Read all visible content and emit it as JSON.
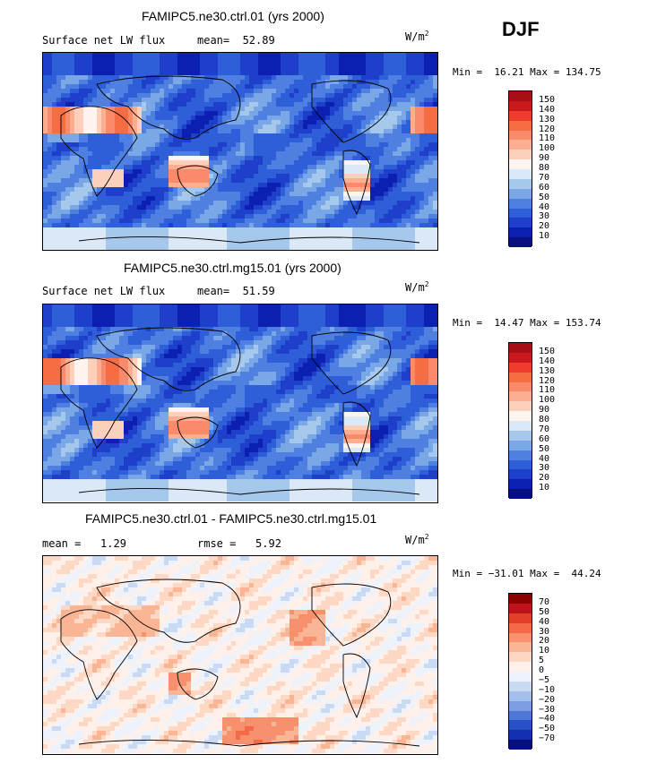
{
  "season": "DJF",
  "panels": [
    {
      "title": "FAMIPC5.ne30.ctrl.01 (yrs 2000)",
      "left_label": "Surface net LW flux",
      "stat_label": "mean=",
      "stat_value": "52.89",
      "units": "W/m",
      "units_sup": "2",
      "min_label": "Min =",
      "min_value": "16.21",
      "max_label": "Max =",
      "max_value": "134.75",
      "colorbar_labels": [
        "150",
        "140",
        "130",
        "120",
        "110",
        "100",
        "90",
        "80",
        "70",
        "60",
        "50",
        "40",
        "30",
        "20",
        "10"
      ],
      "colors": [
        "#a50f15",
        "#cb181d",
        "#ef3b2c",
        "#f46d43",
        "#fb8a6a",
        "#fcae91",
        "#fdd0bc",
        "#fff5f0",
        "#dbe9f6",
        "#a6c8ec",
        "#7aa7e6",
        "#4f7fe0",
        "#2f5fd8",
        "#1d3fc9",
        "#0b20b0",
        "#081080"
      ],
      "field": "lw"
    },
    {
      "title": "FAMIPC5.ne30.ctrl.mg15.01 (yrs 2000)",
      "left_label": "Surface net LW flux",
      "stat_label": "mean=",
      "stat_value": "51.59",
      "units": "W/m",
      "units_sup": "2",
      "min_label": "Min =",
      "min_value": "14.47",
      "max_label": "Max =",
      "max_value": "153.74",
      "colorbar_labels": [
        "150",
        "140",
        "130",
        "120",
        "110",
        "100",
        "90",
        "80",
        "70",
        "60",
        "50",
        "40",
        "30",
        "20",
        "10"
      ],
      "colors": [
        "#a50f15",
        "#cb181d",
        "#ef3b2c",
        "#f46d43",
        "#fb8a6a",
        "#fcae91",
        "#fdd0bc",
        "#fff5f0",
        "#dbe9f6",
        "#a6c8ec",
        "#7aa7e6",
        "#4f7fe0",
        "#2f5fd8",
        "#1d3fc9",
        "#0b20b0",
        "#081080"
      ],
      "field": "lw"
    },
    {
      "title": "FAMIPC5.ne30.ctrl.01 - FAMIPC5.ne30.ctrl.mg15.01",
      "left_label": "mean =",
      "left_value": "1.29",
      "stat_label": "rmse =",
      "stat_value": "5.92",
      "units": "W/m",
      "units_sup": "2",
      "min_label": "Min =",
      "min_value": "−31.01",
      "max_label": "Max =",
      "max_value": "44.24",
      "colorbar_labels": [
        "70",
        "50",
        "40",
        "30",
        "20",
        "10",
        "5",
        "0",
        "−5",
        "−10",
        "−20",
        "−30",
        "−40",
        "−50",
        "−70"
      ],
      "colors": [
        "#8b0000",
        "#c0121a",
        "#e0402a",
        "#f26a48",
        "#f7906c",
        "#fab594",
        "#fdd8c4",
        "#fff0ea",
        "#eef2fb",
        "#cbdaf3",
        "#a5bfec",
        "#7b9ee3",
        "#4f77d8",
        "#2a50c8",
        "#1330b0",
        "#06107c"
      ],
      "field": "diff"
    }
  ],
  "chart_data": [
    {
      "type": "heatmap",
      "title": "FAMIPC5.ne30.ctrl.01 (yrs 2000)",
      "variable": "Surface net LW flux",
      "units": "W/m2",
      "mean": 52.89,
      "min": 16.21,
      "max": 134.75,
      "contour_levels": [
        10,
        20,
        30,
        40,
        50,
        60,
        70,
        80,
        90,
        100,
        110,
        120,
        130,
        140,
        150
      ]
    },
    {
      "type": "heatmap",
      "title": "FAMIPC5.ne30.ctrl.mg15.01 (yrs 2000)",
      "variable": "Surface net LW flux",
      "units": "W/m2",
      "mean": 51.59,
      "min": 14.47,
      "max": 153.74,
      "contour_levels": [
        10,
        20,
        30,
        40,
        50,
        60,
        70,
        80,
        90,
        100,
        110,
        120,
        130,
        140,
        150
      ]
    },
    {
      "type": "heatmap",
      "title": "FAMIPC5.ne30.ctrl.01 - FAMIPC5.ne30.ctrl.mg15.01",
      "units": "W/m2",
      "mean": 1.29,
      "rmse": 5.92,
      "min": -31.01,
      "max": 44.24,
      "contour_levels": [
        -70,
        -50,
        -40,
        -30,
        -20,
        -10,
        -5,
        0,
        5,
        10,
        20,
        30,
        40,
        50,
        70
      ]
    }
  ]
}
